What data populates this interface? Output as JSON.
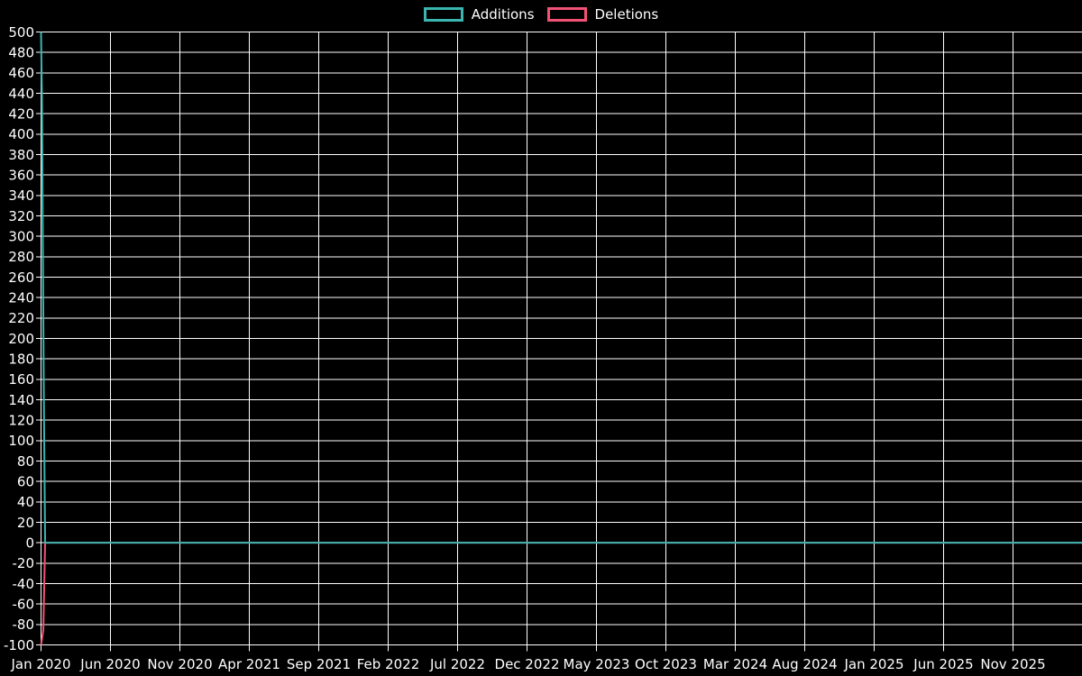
{
  "page": {
    "background": "#000000",
    "text_color": "#ffffff"
  },
  "legend": {
    "items": [
      {
        "label": "Additions",
        "color": "#3ab5b0"
      },
      {
        "label": "Deletions",
        "color": "#f15274"
      }
    ]
  },
  "chart_data": {
    "type": "line",
    "title": "",
    "xlabel": "",
    "ylabel": "",
    "legend_position": "top-center",
    "grid": true,
    "colors": {
      "background": "#000000",
      "grid": "#ffffff",
      "text": "#ffffff",
      "additions": "#3ab5b0",
      "deletions": "#f15274"
    },
    "x_axis": {
      "type": "time",
      "origin": "2020-01-01",
      "tick_interval_months": 5,
      "tick_labels": [
        "Jan 2020",
        "Jun 2020",
        "Nov 2020",
        "Apr 2021",
        "Sep 2021",
        "Feb 2022",
        "Jul 2022",
        "Dec 2022",
        "May 2023",
        "Oct 2023",
        "Mar 2024",
        "Aug 2024",
        "Jan 2025",
        "Jun 2025",
        "Nov 2025"
      ]
    },
    "y_axis": {
      "min": -100,
      "max": 500,
      "step": 20
    },
    "series": [
      {
        "name": "Additions",
        "color": "#3ab5b0",
        "points": [
          [
            "2020-01-01",
            500
          ],
          [
            "2020-01-03",
            436
          ],
          [
            "2020-01-05",
            291
          ],
          [
            "2020-01-07",
            152
          ],
          [
            "2020-01-10",
            0
          ],
          [
            "2026-04-05",
            0
          ]
        ]
      },
      {
        "name": "Deletions",
        "color": "#f15274",
        "points": [
          [
            "2020-01-01",
            -100
          ],
          [
            "2020-01-06",
            -86
          ],
          [
            "2020-01-10",
            0
          ],
          [
            "2026-04-05",
            0
          ]
        ]
      }
    ]
  }
}
